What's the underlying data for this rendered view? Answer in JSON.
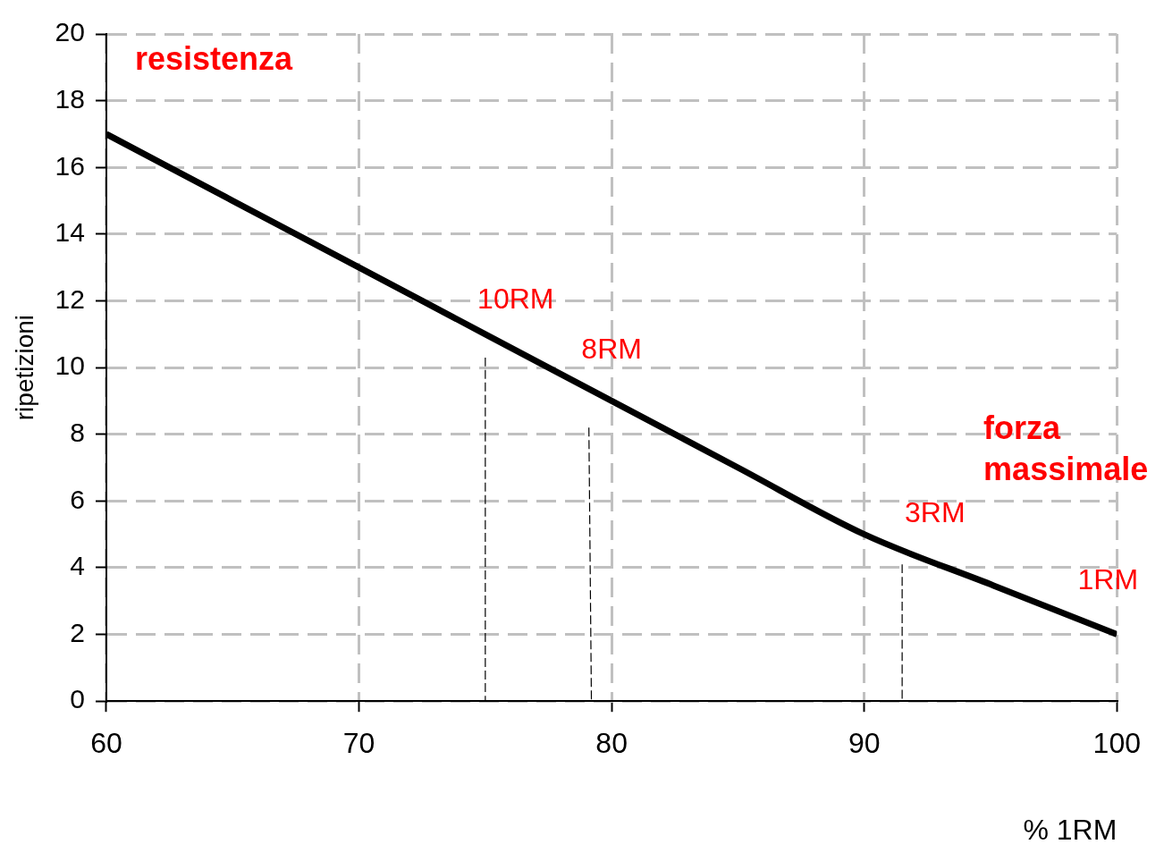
{
  "chart_data": {
    "type": "line",
    "xlabel": "% 1RM",
    "ylabel": "ripetizioni",
    "xlim": [
      60,
      100
    ],
    "xticks": [
      60,
      70,
      80,
      90,
      100
    ],
    "ylim": [
      0,
      20
    ],
    "yticks": [
      0,
      2,
      4,
      6,
      8,
      10,
      12,
      14,
      16,
      18,
      20
    ],
    "grid": true,
    "marker": "none",
    "series": [
      {
        "color": "#000000",
        "x": [
          60,
          65,
          70,
          75,
          80,
          85,
          90,
          95,
          100
        ],
        "values": [
          17,
          15,
          13,
          11,
          9,
          7,
          5,
          3.5,
          2
        ],
        "line_style": "solid"
      },
      {
        "color": "#000000",
        "x": [
          75,
          75
        ],
        "values": [
          10.3,
          0
        ],
        "line_style": "dashed"
      },
      {
        "color": "#000000",
        "x": [
          79.1,
          79.2
        ],
        "values": [
          8.2,
          0
        ],
        "line_style": "dashed"
      },
      {
        "color": "#000000",
        "x": [
          91.5,
          91.5
        ],
        "values": [
          4.1,
          0
        ],
        "line_style": "dashed"
      }
    ],
    "annotations": [
      "resistenza",
      "forza\nmassimale",
      "10RM",
      "8RM",
      "3RM",
      "1RM"
    ]
  }
}
